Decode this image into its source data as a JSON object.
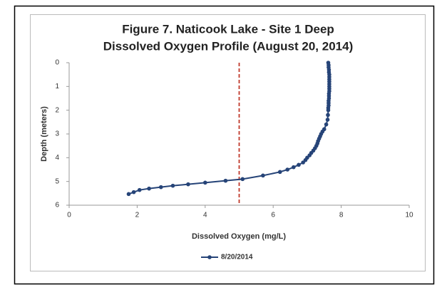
{
  "chart_data": {
    "type": "line",
    "title": [
      "Figure 7. Naticook Lake - Site 1 Deep",
      "Dissolved Oxygen Profile (August 20, 2014)"
    ],
    "x_label": "Dissolved Oxygen (mg/L)",
    "y_label": "Depth (meters)",
    "xlim": [
      0,
      10
    ],
    "xticks": [
      0,
      2,
      4,
      6,
      8,
      10
    ],
    "ylim": [
      0,
      6
    ],
    "yticks": [
      0,
      1,
      2,
      3,
      4,
      5,
      6
    ],
    "y_inverted": true,
    "reference_line": {
      "x": 5,
      "color": "#c0392b"
    },
    "legend": "bottom",
    "series": [
      {
        "name": "8/20/2014",
        "color": "#264478",
        "x": [
          7.62,
          7.63,
          7.63,
          7.64,
          7.64,
          7.65,
          7.65,
          7.65,
          7.65,
          7.65,
          7.65,
          7.65,
          7.65,
          7.64,
          7.64,
          7.64,
          7.63,
          7.63,
          7.63,
          7.62,
          7.62,
          7.61,
          7.6,
          7.56,
          7.5,
          7.45,
          7.41,
          7.38,
          7.35,
          7.32,
          7.3,
          7.27,
          7.23,
          7.18,
          7.12,
          7.07,
          7.0,
          6.95,
          6.88,
          6.75,
          6.6,
          6.42,
          6.2,
          5.7,
          5.1,
          4.6,
          4.0,
          3.5,
          3.05,
          2.7,
          2.35,
          2.07,
          1.9,
          1.75
        ],
        "values": [
          0,
          0.1,
          0.2,
          0.3,
          0.4,
          0.5,
          0.6,
          0.7,
          0.8,
          0.9,
          1.0,
          1.1,
          1.2,
          1.3,
          1.4,
          1.5,
          1.6,
          1.7,
          1.8,
          1.9,
          2.0,
          2.2,
          2.4,
          2.6,
          2.8,
          2.9,
          3.0,
          3.1,
          3.2,
          3.3,
          3.4,
          3.5,
          3.6,
          3.7,
          3.8,
          3.9,
          4.0,
          4.1,
          4.2,
          4.3,
          4.4,
          4.5,
          4.6,
          4.75,
          4.9,
          4.97,
          5.05,
          5.12,
          5.18,
          5.24,
          5.3,
          5.36,
          5.45,
          5.53
        ]
      }
    ]
  }
}
